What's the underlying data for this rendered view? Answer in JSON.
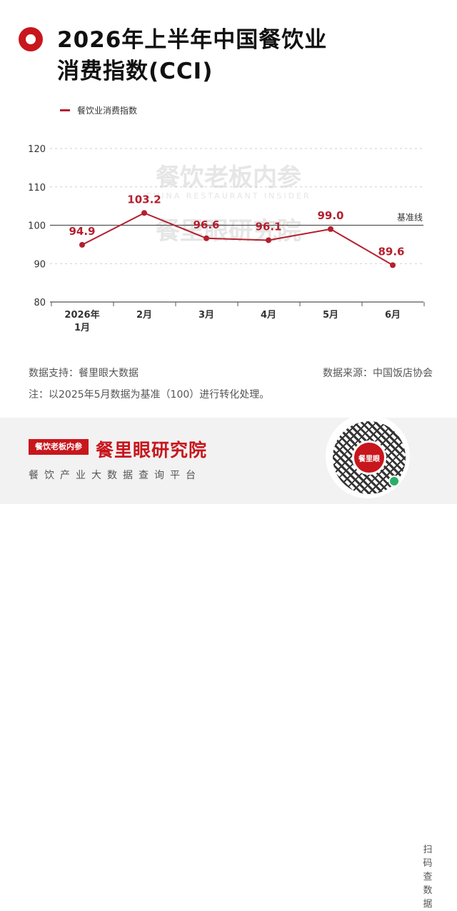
{
  "header": {
    "title_line1": "2026年上半年中国餐饮业",
    "title_line2": "消费指数(CCI)"
  },
  "legend": {
    "label": "餐饮业消费指数"
  },
  "chart_data": {
    "type": "line",
    "categories": [
      "2026年\n1月",
      "2月",
      "3月",
      "4月",
      "5月",
      "6月"
    ],
    "category_lines": [
      [
        "2026年",
        "1月"
      ],
      [
        "2月"
      ],
      [
        "3月"
      ],
      [
        "4月"
      ],
      [
        "5月"
      ],
      [
        "6月"
      ]
    ],
    "series": [
      {
        "name": "餐饮业消费指数",
        "values": [
          94.9,
          103.2,
          96.6,
          96.1,
          99.0,
          89.6
        ],
        "labels": [
          "94.9",
          "103.2",
          "96.6",
          "96.1",
          "99.0",
          "89.6"
        ],
        "color": "#b51f2e"
      }
    ],
    "ylim": [
      80,
      120
    ],
    "yticks": [
      80,
      90,
      100,
      110,
      120
    ],
    "baseline": {
      "value": 100,
      "label": "基准线"
    },
    "grid": "dashed-horizontal",
    "legend_position": "top-left"
  },
  "watermark": {
    "line1": "餐饮老板内参",
    "line2": "CHINA RESTAURANT INSIDER",
    "line3": "餐里眼研究院"
  },
  "footnotes": {
    "source_left": "数据支持：餐里眼大数据",
    "source_right": "数据来源：中国饭店协会",
    "note": "注：以2025年5月数据为基准（100）进行转化处理。"
  },
  "footer": {
    "brand_box": "餐饮老板内参",
    "brand_main": "餐里眼研究院",
    "brand_sub": "餐饮产业大数据查询平台",
    "qr_center": "餐里眼",
    "scan_text": "扫码查数据"
  },
  "colors": {
    "accent": "#c8161d",
    "line": "#b51f2e"
  }
}
